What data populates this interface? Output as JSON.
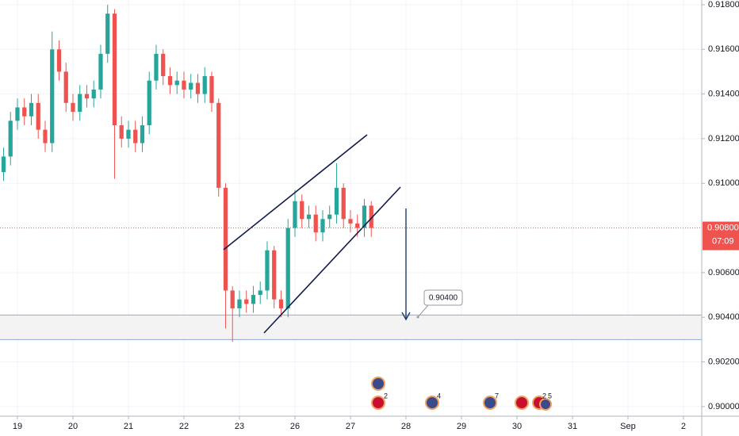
{
  "chart_data": {
    "type": "candlestick",
    "x": [
      -0.25,
      -0.125,
      0,
      0.125,
      0.25,
      0.375,
      0.5,
      0.625,
      0.75,
      0.875,
      1,
      1.125,
      1.25,
      1.375,
      1.5,
      1.625,
      1.75,
      1.875,
      2,
      2.125,
      2.25,
      2.375,
      2.5,
      2.625,
      2.75,
      2.875,
      3,
      3.125,
      3.25,
      3.375,
      3.5,
      3.625,
      3.75,
      3.875,
      4,
      4.125,
      4.25,
      4.375,
      4.5,
      4.625,
      4.75,
      4.875,
      5,
      5.125,
      5.25,
      5.375,
      5.5,
      5.625,
      5.75,
      5.875,
      6,
      6.125,
      6.25,
      6.375
    ],
    "open": [
      0.9105,
      0.9112,
      0.9128,
      0.9134,
      0.913,
      0.9136,
      0.9124,
      0.9118,
      0.916,
      0.915,
      0.9136,
      0.9132,
      0.914,
      0.9138,
      0.9142,
      0.9158,
      0.9176,
      0.9126,
      0.912,
      0.9124,
      0.9118,
      0.9126,
      0.9146,
      0.9158,
      0.9148,
      0.9144,
      0.9146,
      0.9142,
      0.9145,
      0.914,
      0.9148,
      0.9136,
      0.9098,
      0.9052,
      0.9044,
      0.9048,
      0.9046,
      0.905,
      0.9052,
      0.907,
      0.9048,
      0.9044,
      0.908,
      0.9092,
      0.9084,
      0.9086,
      0.9078,
      0.9084,
      0.9086,
      0.9098,
      0.9084,
      0.9082,
      0.908,
      0.909
    ],
    "high": [
      0.9116,
      0.9132,
      0.9138,
      0.9138,
      0.914,
      0.914,
      0.9128,
      0.9168,
      0.9164,
      0.9154,
      0.914,
      0.9144,
      0.9144,
      0.9146,
      0.9162,
      0.918,
      0.9178,
      0.913,
      0.9128,
      0.9128,
      0.913,
      0.915,
      0.9162,
      0.916,
      0.9152,
      0.915,
      0.915,
      0.9149,
      0.9149,
      0.9152,
      0.915,
      0.9138,
      0.91,
      0.9054,
      0.9052,
      0.9052,
      0.9054,
      0.9056,
      0.9074,
      0.9072,
      0.9052,
      0.9084,
      0.9097,
      0.9095,
      0.909,
      0.909,
      0.9088,
      0.909,
      0.9109,
      0.91,
      0.9088,
      0.9086,
      0.9093,
      0.9092
    ],
    "low": [
      0.9101,
      0.9108,
      0.9124,
      0.9126,
      0.9126,
      0.912,
      0.9114,
      0.9114,
      0.9146,
      0.9132,
      0.9128,
      0.9128,
      0.9134,
      0.9134,
      0.9138,
      0.9154,
      0.9102,
      0.9116,
      0.9116,
      0.9114,
      0.9114,
      0.9122,
      0.9142,
      0.9144,
      0.914,
      0.914,
      0.9138,
      0.9138,
      0.9136,
      0.9136,
      0.9132,
      0.9094,
      0.9035,
      0.9029,
      0.904,
      0.9042,
      0.9042,
      0.9046,
      0.9048,
      0.9044,
      0.904,
      0.904,
      0.9076,
      0.908,
      0.908,
      0.9074,
      0.9074,
      0.908,
      0.9082,
      0.908,
      0.9078,
      0.9076,
      0.9076,
      0.9076
    ],
    "close": [
      0.9112,
      0.9128,
      0.9134,
      0.913,
      0.9136,
      0.9124,
      0.9118,
      0.916,
      0.915,
      0.9136,
      0.9132,
      0.914,
      0.9138,
      0.9142,
      0.9158,
      0.9176,
      0.9126,
      0.912,
      0.9124,
      0.9118,
      0.9126,
      0.9146,
      0.9158,
      0.9148,
      0.9144,
      0.9146,
      0.9142,
      0.9145,
      0.914,
      0.9148,
      0.9136,
      0.9098,
      0.9052,
      0.9044,
      0.9048,
      0.9046,
      0.905,
      0.9052,
      0.907,
      0.9048,
      0.9044,
      0.908,
      0.9092,
      0.9084,
      0.9086,
      0.9078,
      0.9084,
      0.9086,
      0.9098,
      0.9084,
      0.9082,
      0.908,
      0.909,
      0.908
    ],
    "up_color": "#26a69a",
    "down_color": "#ef5350",
    "xlim": [
      -0.314,
      12.329
    ],
    "xticks": [
      {
        "value": 0,
        "label": "19"
      },
      {
        "value": 1,
        "label": "20"
      },
      {
        "value": 2,
        "label": "21"
      },
      {
        "value": 3,
        "label": "22"
      },
      {
        "value": 4,
        "label": "23"
      },
      {
        "value": 5,
        "label": "26"
      },
      {
        "value": 6,
        "label": "27"
      },
      {
        "value": 7,
        "label": "28"
      },
      {
        "value": 8,
        "label": "29"
      },
      {
        "value": 9,
        "label": "30"
      },
      {
        "value": 10,
        "label": "31"
      },
      {
        "value": 11,
        "label": "Sep"
      },
      {
        "value": 12,
        "label": "2"
      }
    ],
    "ylim": [
      0.89957,
      0.91821
    ],
    "yticks": [
      {
        "value": 0.918,
        "label": "0.91800"
      },
      {
        "value": 0.916,
        "label": "0.91600"
      },
      {
        "value": 0.914,
        "label": "0.91400"
      },
      {
        "value": 0.912,
        "label": "0.91200"
      },
      {
        "value": 0.91,
        "label": "0.91000"
      },
      {
        "value": 0.906,
        "label": "0.90600"
      },
      {
        "value": 0.904,
        "label": "0.90400"
      },
      {
        "value": 0.902,
        "label": "0.90200"
      },
      {
        "value": 0.9,
        "label": "0.90000"
      }
    ],
    "grid": true,
    "last_price": {
      "value": 0.908,
      "label": "0.90800"
    },
    "countdown": "07:09",
    "zone": {
      "low": 0.903,
      "high": 0.9041
    },
    "annotation": "0.90400",
    "events": [
      "2",
      "4",
      "7",
      "2",
      "5"
    ]
  }
}
